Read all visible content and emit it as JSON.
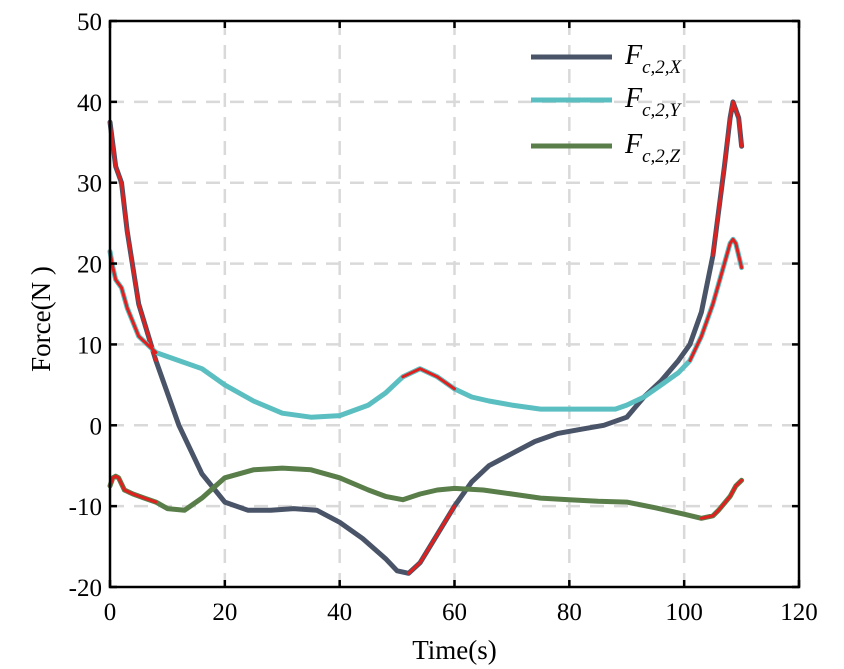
{
  "chart_data": {
    "type": "line",
    "title": "",
    "xlabel": "Time(s)",
    "ylabel": "Force(N )",
    "xlim": [
      0,
      120
    ],
    "ylim": [
      -20,
      50
    ],
    "xticks": [
      "0",
      "20",
      "40",
      "60",
      "80",
      "100",
      "120"
    ],
    "yticks": [
      "-20",
      "-10",
      "0",
      "10",
      "20",
      "30",
      "40",
      "50"
    ],
    "grid": true,
    "legend_position": "top-right",
    "highlight_color": "#e0201e",
    "series": [
      {
        "name": "Fc,2,X",
        "label_main": "F",
        "label_sub": "c,2,X",
        "color": "#4a5468",
        "x": [
          0,
          1,
          2,
          3,
          5,
          8,
          12,
          16,
          20,
          24,
          28,
          32,
          36,
          40,
          44,
          48,
          50,
          52,
          54,
          57,
          60,
          63,
          66,
          70,
          74,
          78,
          82,
          86,
          90,
          93,
          96,
          99,
          101,
          103,
          105,
          107,
          108,
          108.5,
          109.5,
          110
        ],
        "y": [
          37.5,
          32,
          30,
          24,
          15,
          8,
          0,
          -6,
          -9.5,
          -10.5,
          -10.5,
          -10.3,
          -10.5,
          -12,
          -14,
          -16.5,
          -18,
          -18.3,
          -17,
          -13.5,
          -10,
          -7,
          -5,
          -3.5,
          -2,
          -1,
          -0.5,
          0,
          1,
          3.5,
          5.5,
          8,
          10,
          14,
          21,
          32,
          38,
          40,
          38,
          34.5
        ],
        "highlight_ranges": [
          [
            0,
            8
          ],
          [
            51,
            61
          ],
          [
            105,
            110
          ]
        ]
      },
      {
        "name": "Fc,2,Y",
        "label_main": "F",
        "label_sub": "c,2,Y",
        "color": "#5bbfc2",
        "x": [
          0,
          0.5,
          1,
          2,
          3,
          5,
          8,
          12,
          16,
          20,
          25,
          30,
          35,
          40,
          45,
          48,
          51,
          54,
          57,
          60,
          63,
          66,
          70,
          75,
          80,
          85,
          88,
          90,
          93,
          96,
          99,
          101,
          103,
          105,
          107,
          108,
          108.5,
          109,
          110
        ],
        "y": [
          21.5,
          19.5,
          18,
          17,
          14.5,
          11,
          9,
          8,
          7,
          5,
          3,
          1.5,
          1,
          1.2,
          2.5,
          4,
          6,
          7,
          6,
          4.5,
          3.5,
          3,
          2.5,
          2,
          2,
          2,
          2,
          2.5,
          3.5,
          5,
          6.5,
          8,
          11,
          15,
          20,
          22.5,
          23,
          22.5,
          19.5
        ],
        "highlight_ranges": [
          [
            0,
            8
          ],
          [
            50,
            61
          ],
          [
            101,
            110
          ]
        ]
      },
      {
        "name": "Fc,2,Z",
        "label_main": "F",
        "label_sub": "c,2,Z",
        "color": "#5a7e4a",
        "x": [
          0,
          0.5,
          1,
          1.5,
          2.5,
          4,
          6,
          8,
          10,
          13,
          16,
          20,
          25,
          30,
          35,
          40,
          45,
          48,
          51,
          54,
          57,
          60,
          65,
          70,
          75,
          80,
          85,
          90,
          95,
          100,
          103,
          105,
          106,
          108,
          109,
          110
        ],
        "y": [
          -7.5,
          -6.5,
          -6.3,
          -6.5,
          -8,
          -8.5,
          -9,
          -9.5,
          -10.3,
          -10.5,
          -9,
          -6.5,
          -5.5,
          -5.3,
          -5.5,
          -6.5,
          -8,
          -8.8,
          -9.2,
          -8.5,
          -8,
          -7.8,
          -8,
          -8.5,
          -9,
          -9.2,
          -9.4,
          -9.5,
          -10.2,
          -11,
          -11.5,
          -11.2,
          -10.5,
          -8.8,
          -7.5,
          -6.8
        ],
        "highlight_ranges": [
          [
            0,
            8
          ],
          [
            103,
            110
          ]
        ]
      }
    ]
  }
}
